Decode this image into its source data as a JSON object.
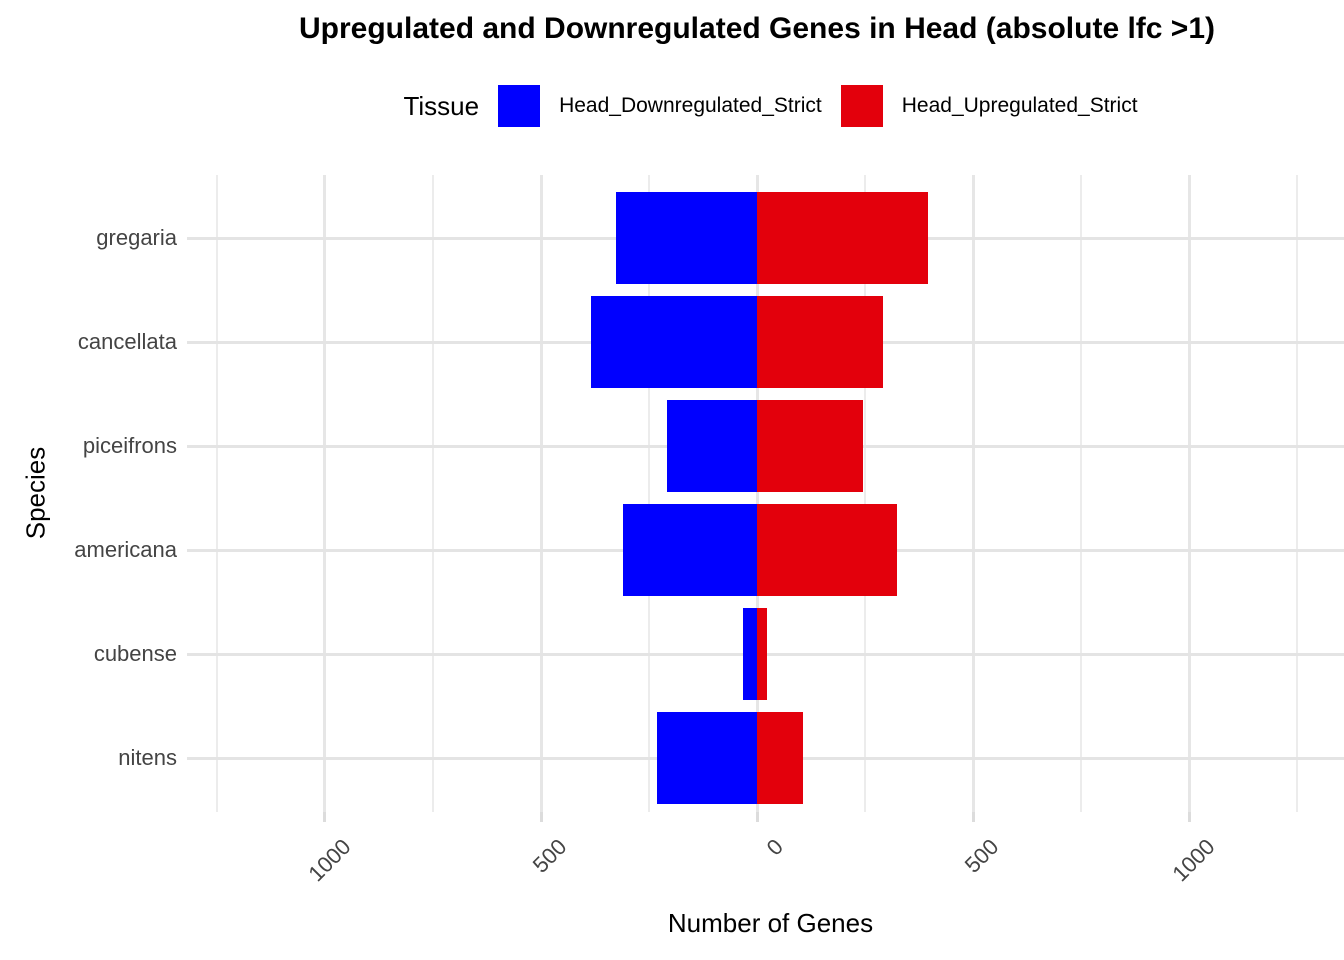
{
  "chart_data": {
    "type": "bar",
    "variant": "diverging-horizontal",
    "title": "Upregulated and Downregulated Genes in Head (absolute lfc >1)",
    "xlabel": "Number of Genes",
    "ylabel": "Species",
    "legend": {
      "title": "Tissue",
      "position": "top"
    },
    "categories": [
      "gregaria",
      "cancellata",
      "piceifrons",
      "americana",
      "cubense",
      "nitens"
    ],
    "series": [
      {
        "name": "Head_Downregulated_Strict",
        "color": "#0000FF",
        "side": "left",
        "values": [
          -326,
          -384,
          -208,
          -310,
          -32,
          -231
        ]
      },
      {
        "name": "Head_Upregulated_Strict",
        "color": "#E3000C",
        "side": "right",
        "values": [
          396,
          292,
          245,
          324,
          23,
          106
        ]
      }
    ],
    "x_ticks": [
      {
        "value": -1000,
        "label": "1000"
      },
      {
        "value": -500,
        "label": "500"
      },
      {
        "value": 0,
        "label": "0"
      },
      {
        "value": 500,
        "label": "500"
      },
      {
        "value": 1000,
        "label": "1000"
      }
    ],
    "x_minor_gridlines": [
      -1250,
      -750,
      -250,
      250,
      750,
      1250
    ],
    "xlim": [
      -1296,
      1358
    ],
    "grid": true,
    "x_tick_label_angle": 45,
    "colors": {
      "background": "#FFFFFF",
      "gridline_major": "#E6E6E6",
      "gridline_minor": "#ECECEC",
      "axis_text": "#444444",
      "title_text": "#000000"
    }
  }
}
